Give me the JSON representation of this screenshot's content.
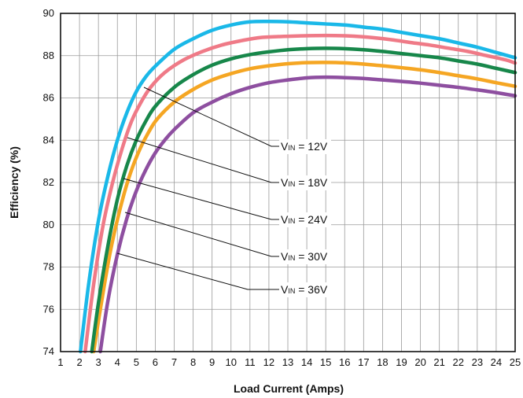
{
  "chart_data": {
    "type": "line",
    "title": "",
    "xlabel": "Load Current (Amps)",
    "ylabel": "Efficiency (%)",
    "xlim": [
      1,
      25
    ],
    "ylim": [
      74,
      90
    ],
    "x_ticks": [
      1,
      2,
      3,
      4,
      5,
      6,
      7,
      8,
      9,
      10,
      11,
      12,
      13,
      14,
      15,
      16,
      17,
      18,
      19,
      20,
      21,
      22,
      23,
      24,
      25
    ],
    "y_ticks": [
      74,
      76,
      78,
      80,
      82,
      84,
      86,
      88,
      90
    ],
    "grid": true,
    "legend": "callout labels, right side of plot",
    "series": [
      {
        "name": "VIN = 12V",
        "label_main": "V",
        "label_sub": "IN",
        "label_rest": " = 12V",
        "color": "#1ab8e8",
        "x": [
          2.05,
          2.5,
          3,
          3.5,
          4,
          4.5,
          5,
          5.5,
          6,
          7,
          8,
          9,
          10,
          11,
          12,
          13,
          14,
          15,
          16,
          17,
          18,
          19,
          20,
          21,
          22,
          23,
          24,
          25
        ],
        "y": [
          74.0,
          77.3,
          80.2,
          82.3,
          84.0,
          85.3,
          86.3,
          87.0,
          87.5,
          88.3,
          88.8,
          89.2,
          89.45,
          89.6,
          89.62,
          89.6,
          89.55,
          89.5,
          89.45,
          89.35,
          89.25,
          89.1,
          88.95,
          88.8,
          88.6,
          88.4,
          88.15,
          87.9
        ]
      },
      {
        "name": "VIN = 18V",
        "label_main": "V",
        "label_sub": "IN",
        "label_rest": " = 18V",
        "color": "#ef7a87",
        "x": [
          2.3,
          2.75,
          3.25,
          3.75,
          4.25,
          4.75,
          5.25,
          5.75,
          6.5,
          7.5,
          8.5,
          9.5,
          10.5,
          11.5,
          12.5,
          13.5,
          14.5,
          15.5,
          16.5,
          17.5,
          18.5,
          19.5,
          20.5,
          21.5,
          22.5,
          23.5,
          24.5,
          25
        ],
        "y": [
          74.0,
          77.2,
          80.0,
          82.0,
          83.6,
          84.9,
          85.8,
          86.5,
          87.2,
          87.8,
          88.2,
          88.5,
          88.7,
          88.85,
          88.9,
          88.93,
          88.95,
          88.95,
          88.92,
          88.85,
          88.75,
          88.62,
          88.5,
          88.35,
          88.2,
          88.0,
          87.8,
          87.65
        ]
      },
      {
        "name": "VIN = 24V",
        "label_main": "V",
        "label_sub": "IN",
        "label_rest": " = 24V",
        "color": "#17874a",
        "x": [
          2.65,
          3.0,
          3.5,
          4.0,
          4.5,
          5.0,
          5.5,
          6.0,
          7,
          8,
          9,
          10,
          11,
          12,
          13,
          14,
          15,
          16,
          17,
          18,
          19,
          20,
          21,
          22,
          23,
          24,
          25
        ],
        "y": [
          74.0,
          76.3,
          79.0,
          81.2,
          82.8,
          84.0,
          84.9,
          85.6,
          86.5,
          87.1,
          87.55,
          87.85,
          88.05,
          88.18,
          88.28,
          88.33,
          88.35,
          88.33,
          88.28,
          88.2,
          88.1,
          88.0,
          87.9,
          87.75,
          87.6,
          87.4,
          87.2
        ]
      },
      {
        "name": "VIN = 30V",
        "label_main": "V",
        "label_sub": "IN",
        "label_rest": " = 30V",
        "color": "#f5a623",
        "x": [
          2.75,
          3.1,
          3.6,
          4.1,
          4.6,
          5.1,
          5.6,
          6.1,
          7,
          8,
          9,
          10,
          11,
          12,
          13,
          14,
          15,
          16,
          17,
          18,
          19,
          20,
          21,
          22,
          23,
          24,
          25
        ],
        "y": [
          74.0,
          76.0,
          78.6,
          80.6,
          82.2,
          83.4,
          84.3,
          85.0,
          85.8,
          86.4,
          86.85,
          87.15,
          87.38,
          87.52,
          87.62,
          87.67,
          87.68,
          87.66,
          87.6,
          87.52,
          87.43,
          87.33,
          87.2,
          87.05,
          86.9,
          86.72,
          86.55
        ]
      },
      {
        "name": "VIN = 36V",
        "label_main": "V",
        "label_sub": "IN",
        "label_rest": " = 36V",
        "color": "#8e4fa0",
        "x": [
          3.1,
          3.5,
          4.0,
          4.5,
          5.0,
          5.5,
          6.0,
          6.5,
          7,
          8,
          9,
          10,
          11,
          12,
          13,
          14,
          15,
          16,
          17,
          18,
          19,
          20,
          21,
          22,
          23,
          24,
          25
        ],
        "y": [
          74.0,
          76.4,
          78.6,
          80.3,
          81.6,
          82.6,
          83.4,
          84.0,
          84.5,
          85.3,
          85.8,
          86.2,
          86.5,
          86.72,
          86.85,
          86.95,
          86.98,
          86.96,
          86.92,
          86.85,
          86.78,
          86.7,
          86.6,
          86.5,
          86.38,
          86.25,
          86.1
        ]
      }
    ]
  }
}
